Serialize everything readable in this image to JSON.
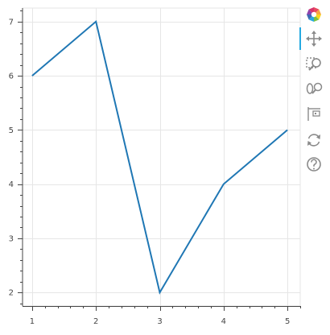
{
  "chart_data": {
    "type": "line",
    "x": [
      1,
      2,
      3,
      4,
      5
    ],
    "y": [
      6,
      7,
      2,
      4,
      5
    ],
    "xlim": [
      0.85,
      5.2
    ],
    "ylim": [
      1.75,
      7.25
    ],
    "xticks": [
      1,
      2,
      3,
      4,
      5
    ],
    "yticks": [
      2,
      3,
      4,
      5,
      6,
      7
    ],
    "grid": true,
    "line_color": "#1f77b4",
    "title": "",
    "xlabel": "",
    "ylabel": ""
  },
  "toolbar": {
    "logo_icon": "bokeh-logo-icon",
    "tools": [
      {
        "icon": "pan-icon",
        "active": true
      },
      {
        "icon": "box-zoom-icon",
        "active": false
      },
      {
        "icon": "wheel-zoom-icon",
        "active": false
      },
      {
        "icon": "save-icon",
        "active": false
      },
      {
        "icon": "reset-icon",
        "active": false
      },
      {
        "icon": "help-icon",
        "active": false
      }
    ]
  },
  "colors": {
    "grid": "#e6e6e6",
    "axis": "#444444",
    "tool_icon": "#8a8a8a",
    "active_tool": "#26aae1"
  }
}
